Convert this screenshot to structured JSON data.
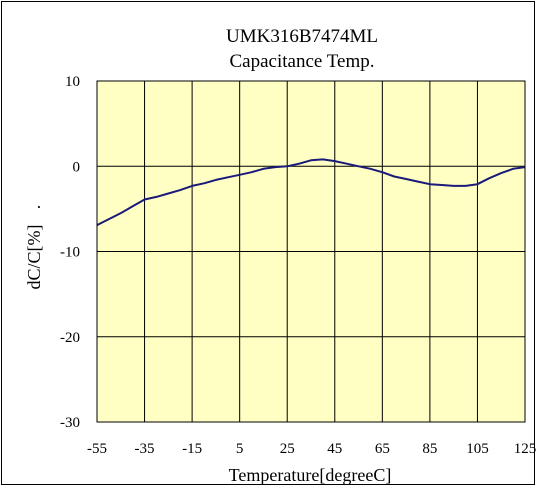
{
  "chart_data": {
    "type": "line",
    "title": "UMK316B7474ML",
    "subtitle": "Capacitance Temp.",
    "xlabel": "Temperature[degreeC]",
    "ylabel": "dC/C[%]",
    "ylabel_suffix": ".",
    "xlim": [
      -55,
      125
    ],
    "ylim": [
      -30,
      10
    ],
    "xticks": [
      -55,
      -35,
      -15,
      5,
      25,
      45,
      65,
      85,
      105,
      125
    ],
    "yticks": [
      10,
      0,
      -10,
      -20,
      -30
    ],
    "grid": true,
    "colors": {
      "plot_background": "#FFFFC4",
      "line": "#1A1A7A",
      "grid": "#000000"
    },
    "series": [
      {
        "x": [
          -55,
          -50,
          -45,
          -40,
          -35,
          -30,
          -25,
          -20,
          -15,
          -10,
          -5,
          0,
          5,
          10,
          15,
          20,
          25,
          30,
          35,
          40,
          45,
          50,
          55,
          60,
          65,
          70,
          75,
          80,
          85,
          90,
          95,
          100,
          105,
          110,
          115,
          120,
          125
        ],
        "y": [
          -6.9,
          -6.2,
          -5.5,
          -4.7,
          -3.9,
          -3.6,
          -3.2,
          -2.8,
          -2.3,
          -2.0,
          -1.6,
          -1.3,
          -1.0,
          -0.7,
          -0.3,
          -0.1,
          0.0,
          0.3,
          0.7,
          0.8,
          0.6,
          0.3,
          0.0,
          -0.3,
          -0.7,
          -1.2,
          -1.5,
          -1.8,
          -2.1,
          -2.2,
          -2.3,
          -2.3,
          -2.1,
          -1.4,
          -0.8,
          -0.3,
          -0.1
        ]
      }
    ]
  }
}
